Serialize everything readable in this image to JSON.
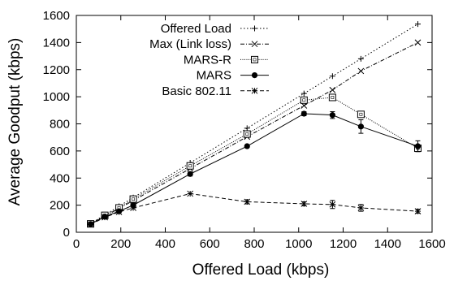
{
  "chart_data": {
    "type": "line",
    "title": "",
    "xlabel": "Offered Load (kbps)",
    "ylabel": "Average Goodput (kbps)",
    "xlim": [
      0,
      1600
    ],
    "ylim": [
      0,
      1600
    ],
    "xticks": [
      0,
      200,
      400,
      600,
      800,
      1000,
      1200,
      1400,
      1600
    ],
    "yticks": [
      0,
      200,
      400,
      600,
      800,
      1000,
      1200,
      1400,
      1600
    ],
    "grid": false,
    "legend_position": "top-left",
    "series": [
      {
        "name": "Offered Load",
        "marker": "plus",
        "dash": "dotted",
        "x": [
          64,
          128,
          192,
          256,
          512,
          768,
          1024,
          1152,
          1280,
          1536
        ],
        "y": [
          64,
          128,
          192,
          256,
          512,
          768,
          1024,
          1152,
          1280,
          1536
        ]
      },
      {
        "name": "Max (Link loss)",
        "marker": "cross",
        "dash": "dashdot",
        "x": [
          64,
          128,
          192,
          256,
          512,
          768,
          1024,
          1152,
          1280,
          1536
        ],
        "y": [
          58,
          117,
          176,
          234,
          470,
          705,
          935,
          1050,
          1190,
          1400
        ]
      },
      {
        "name": "MARS-R",
        "marker": "open-square",
        "dash": "fine-dotted",
        "x": [
          64,
          128,
          192,
          256,
          512,
          768,
          1024,
          1152,
          1280,
          1536
        ],
        "y": [
          62,
          125,
          180,
          245,
          490,
          725,
          975,
          995,
          870,
          620
        ]
      },
      {
        "name": "MARS",
        "marker": "filled-circle",
        "dash": "solid",
        "x": [
          64,
          128,
          192,
          256,
          512,
          768,
          1024,
          1152,
          1280,
          1536
        ],
        "y": [
          60,
          115,
          155,
          200,
          430,
          635,
          875,
          865,
          780,
          635
        ],
        "errors": [
          0,
          0,
          0,
          0,
          15,
          0,
          15,
          25,
          50,
          40
        ]
      },
      {
        "name": "Basic 802.11",
        "marker": "star",
        "dash": "dashed",
        "x": [
          64,
          128,
          192,
          256,
          512,
          768,
          1024,
          1152,
          1280,
          1536
        ],
        "y": [
          58,
          110,
          150,
          180,
          285,
          225,
          210,
          205,
          180,
          155
        ],
        "errors": [
          0,
          0,
          0,
          0,
          0,
          15,
          15,
          30,
          25,
          15
        ]
      }
    ]
  }
}
